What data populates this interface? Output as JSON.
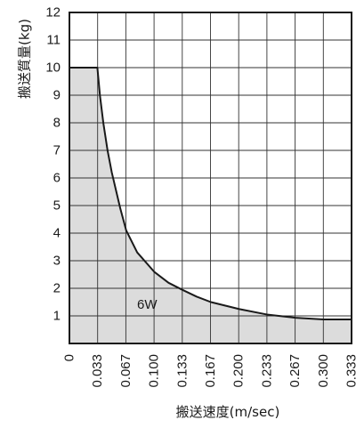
{
  "chart_data": {
    "type": "area",
    "title": "",
    "xlabel": "搬送速度(m/sec)",
    "ylabel": "搬送質量(kg)",
    "xlim": [
      0,
      0.333
    ],
    "ylim": [
      0,
      12
    ],
    "x_ticks": [
      "0",
      "0.033",
      "0.067",
      "0.100",
      "0.133",
      "0.167",
      "0.200",
      "0.233",
      "0.267",
      "0.300",
      "0.333"
    ],
    "y_ticks": [
      "1",
      "2",
      "3",
      "4",
      "5",
      "6",
      "7",
      "8",
      "9",
      "10",
      "11",
      "12"
    ],
    "grid": true,
    "fill_color": "#dcdcdc",
    "line_color": "#1a1a1a",
    "series": [
      {
        "name": "6W",
        "x": [
          0,
          0.033,
          0.033,
          0.036,
          0.04,
          0.045,
          0.05,
          0.06,
          0.067,
          0.08,
          0.1,
          0.117,
          0.133,
          0.15,
          0.167,
          0.2,
          0.233,
          0.267,
          0.3,
          0.333
        ],
        "y": [
          10,
          10,
          10,
          9.0,
          8.0,
          7.0,
          6.2,
          4.9,
          4.1,
          3.3,
          2.6,
          2.2,
          1.95,
          1.7,
          1.5,
          1.25,
          1.05,
          0.93,
          0.87,
          0.87
        ]
      }
    ]
  }
}
